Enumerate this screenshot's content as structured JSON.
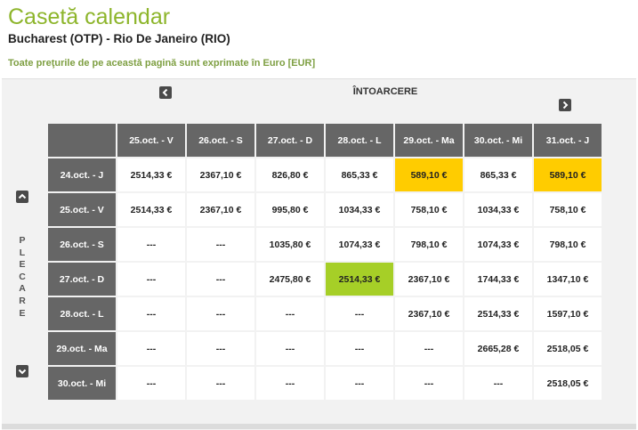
{
  "page": {
    "title": "Casetă calendar",
    "route": "Bucharest (OTP) - Rio De Janeiro (RIO)",
    "currency_note": "Toate preţurile de pe această pagină sunt exprimate în Euro [EUR]"
  },
  "calendar": {
    "return_label": "ÎNTOARCERE",
    "departure_label": [
      "P",
      "L",
      "E",
      "C",
      "A",
      "R",
      "E"
    ],
    "columns": [
      "25.oct. - V",
      "26.oct. - S",
      "27.oct. - D",
      "28.oct. - L",
      "29.oct. - Ma",
      "30.oct. - Mi",
      "31.oct. - J"
    ],
    "rows": [
      {
        "label": "24.oct. - J",
        "cells": [
          "2514,33 €",
          "2367,10 €",
          "826,80 €",
          "865,33 €",
          "589,10 €",
          "865,33 €",
          "589,10 €"
        ]
      },
      {
        "label": "25.oct. - V",
        "cells": [
          "2514,33 €",
          "2367,10 €",
          "995,80 €",
          "1034,33 €",
          "758,10 €",
          "1034,33 €",
          "758,10 €"
        ]
      },
      {
        "label": "26.oct. - S",
        "cells": [
          "---",
          "---",
          "1035,80 €",
          "1074,33 €",
          "798,10 €",
          "1074,33 €",
          "798,10 €"
        ]
      },
      {
        "label": "27.oct. - D",
        "cells": [
          "---",
          "---",
          "2475,80 €",
          "2514,33 €",
          "2367,10 €",
          "1744,33 €",
          "1347,10 €"
        ]
      },
      {
        "label": "28.oct. - L",
        "cells": [
          "---",
          "---",
          "---",
          "---",
          "2367,10 €",
          "2514,33 €",
          "1597,10 €"
        ]
      },
      {
        "label": "29.oct. - Ma",
        "cells": [
          "---",
          "---",
          "---",
          "---",
          "---",
          "2665,28 €",
          "2518,05 €"
        ]
      },
      {
        "label": "30.oct. - Mi",
        "cells": [
          "---",
          "---",
          "---",
          "---",
          "---",
          "---",
          "2518,05 €"
        ]
      }
    ],
    "cheapest_cells": [
      [
        0,
        4
      ],
      [
        0,
        6
      ]
    ],
    "selected_cell": [
      3,
      3
    ],
    "colors": {
      "cheapest": "#ffcc00",
      "selected": "#a6cf27",
      "header": "#666666",
      "title": "#8db52b"
    }
  },
  "nav": {
    "prev_return_icon": "chevron-left-icon",
    "next_return_icon": "chevron-right-icon",
    "prev_departure_icon": "chevron-up-icon",
    "next_departure_icon": "chevron-down-icon"
  }
}
